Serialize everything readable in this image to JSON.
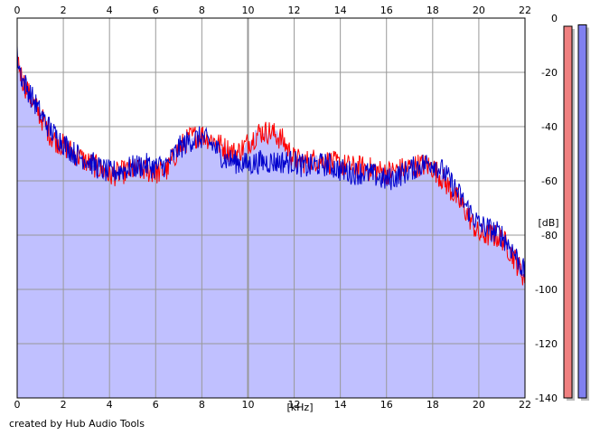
{
  "credit": "created by Hub Audio Tools",
  "colors": {
    "background": "#ffffff",
    "fill": "#c0c0ff",
    "left_channel": "#ff0000",
    "right_channel": "#0000cc",
    "grid": "#999999",
    "meter_left": "#f08080",
    "meter_right": "#8080f0"
  },
  "chart_data": {
    "type": "line",
    "xlabel": "[kHz]",
    "ylabel": "[dB]",
    "xlim": [
      0,
      22
    ],
    "ylim": [
      -140,
      0
    ],
    "x_ticks": [
      "0",
      "2",
      "4",
      "6",
      "8",
      "10",
      "12",
      "14",
      "16",
      "18",
      "20",
      "22"
    ],
    "y_ticks": [
      "0",
      "-20",
      "-40",
      "-60",
      "-80",
      "-100",
      "-120",
      "-140"
    ],
    "grid": true,
    "filled_area": true,
    "series": [
      {
        "color": "#ff0000",
        "x": [
          0,
          0.2,
          0.5,
          1,
          1.5,
          2,
          2.5,
          3,
          3.5,
          4,
          4.5,
          5,
          5.5,
          6,
          6.5,
          7,
          7.5,
          8,
          8.5,
          9,
          9.5,
          10,
          10.5,
          11,
          11.5,
          12,
          12.5,
          13,
          13.5,
          14,
          14.5,
          15,
          15.5,
          16,
          16.5,
          17,
          17.5,
          18,
          18.5,
          19,
          19.5,
          20,
          20.5,
          21,
          21.5,
          22
        ],
        "values": [
          -14,
          -22,
          -28,
          -36,
          -44,
          -47,
          -50,
          -53,
          -55,
          -58,
          -57,
          -56,
          -56,
          -57,
          -56,
          -48,
          -44,
          -43,
          -45,
          -48,
          -50,
          -46,
          -42,
          -42,
          -45,
          -52,
          -53,
          -52,
          -53,
          -54,
          -55,
          -55,
          -56,
          -57,
          -56,
          -55,
          -54,
          -55,
          -60,
          -66,
          -72,
          -80,
          -80,
          -81,
          -88,
          -96
        ]
      },
      {
        "color": "#0000cc",
        "x": [
          0,
          0.2,
          0.5,
          1,
          1.5,
          2,
          2.5,
          3,
          3.5,
          4,
          4.5,
          5,
          5.5,
          6,
          6.5,
          7,
          7.5,
          8,
          8.5,
          9,
          9.5,
          10,
          10.5,
          11,
          11.5,
          12,
          12.5,
          13,
          13.5,
          14,
          14.5,
          15,
          15.5,
          16,
          16.5,
          17,
          17.5,
          18,
          18.5,
          19,
          19.5,
          20,
          20.5,
          21,
          21.5,
          22
        ],
        "values": [
          -14,
          -22,
          -27,
          -35,
          -42,
          -46,
          -50,
          -52,
          -55,
          -57,
          -56,
          -55,
          -54,
          -55,
          -54,
          -48,
          -45,
          -44,
          -47,
          -52,
          -53,
          -54,
          -53,
          -53,
          -53,
          -53,
          -55,
          -54,
          -54,
          -56,
          -57,
          -57,
          -58,
          -60,
          -58,
          -56,
          -54,
          -53,
          -57,
          -63,
          -70,
          -76,
          -78,
          -80,
          -86,
          -94
        ]
      }
    ],
    "meters": [
      {
        "color": "#f08080",
        "level": -3
      },
      {
        "color": "#8080f0",
        "level": -2.5
      }
    ]
  }
}
